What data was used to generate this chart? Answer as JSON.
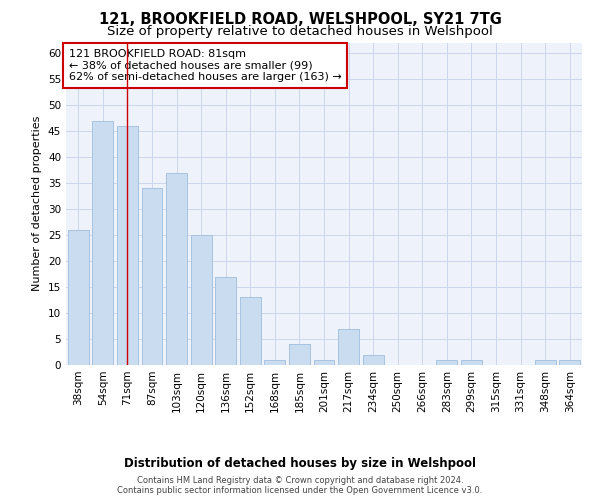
{
  "title": "121, BROOKFIELD ROAD, WELSHPOOL, SY21 7TG",
  "subtitle": "Size of property relative to detached houses in Welshpool",
  "xlabel": "Distribution of detached houses by size in Welshpool",
  "ylabel": "Number of detached properties",
  "categories": [
    "38sqm",
    "54sqm",
    "71sqm",
    "87sqm",
    "103sqm",
    "120sqm",
    "136sqm",
    "152sqm",
    "168sqm",
    "185sqm",
    "201sqm",
    "217sqm",
    "234sqm",
    "250sqm",
    "266sqm",
    "283sqm",
    "299sqm",
    "315sqm",
    "331sqm",
    "348sqm",
    "364sqm"
  ],
  "values": [
    26,
    47,
    46,
    34,
    37,
    25,
    17,
    13,
    1,
    4,
    1,
    7,
    2,
    0,
    0,
    1,
    1,
    0,
    0,
    1,
    1
  ],
  "bar_color": "#c9dcf0",
  "bar_edge_color": "#a0bedd",
  "red_line_x": 2,
  "annotation_text": "121 BROOKFIELD ROAD: 81sqm\n← 38% of detached houses are smaller (99)\n62% of semi-detached houses are larger (163) →",
  "annotation_box_color": "#ffffff",
  "annotation_box_edge": "#cc0000",
  "ylim": [
    0,
    62
  ],
  "yticks": [
    0,
    5,
    10,
    15,
    20,
    25,
    30,
    35,
    40,
    45,
    50,
    55,
    60
  ],
  "footer": "Contains HM Land Registry data © Crown copyright and database right 2024.\nContains public sector information licensed under the Open Government Licence v3.0.",
  "title_fontsize": 10.5,
  "subtitle_fontsize": 9.5,
  "xlabel_fontsize": 8.5,
  "ylabel_fontsize": 8,
  "tick_fontsize": 7.5,
  "annotation_fontsize": 8,
  "footer_fontsize": 6,
  "background_color": "#ffffff",
  "plot_bg_color": "#edf2fb",
  "grid_color": "#ccd6ea"
}
